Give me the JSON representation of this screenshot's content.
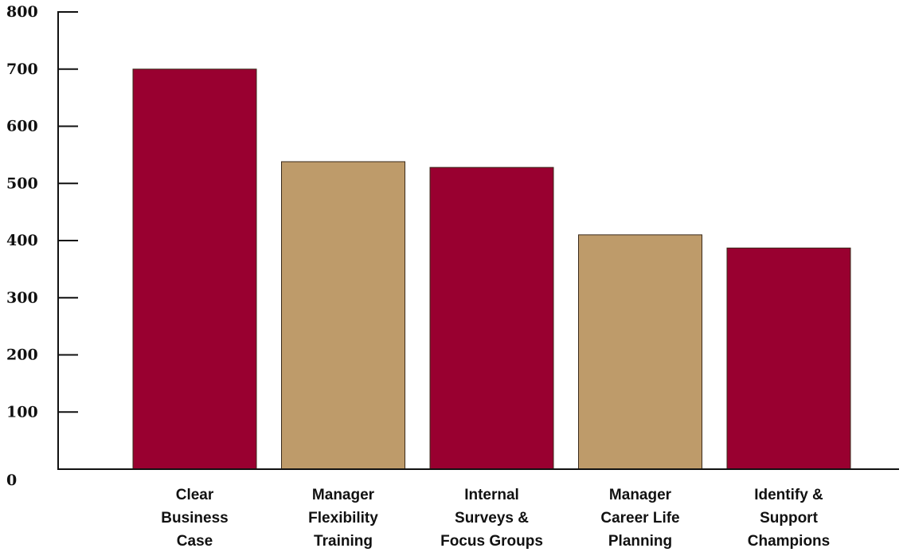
{
  "chart_data": {
    "type": "bar",
    "categories": [
      [
        "Clear",
        "Business",
        "Case"
      ],
      [
        "Manager",
        "Flexibility",
        "Training"
      ],
      [
        "Internal",
        "Surveys &",
        "Focus Groups"
      ],
      [
        "Manager",
        "Career Life",
        "Planning"
      ],
      [
        "Identify &",
        "Support",
        "Champions"
      ]
    ],
    "values": [
      700,
      538,
      528,
      410,
      387
    ],
    "bar_colors": [
      "#990030",
      "#BE9B6A",
      "#990030",
      "#BE9B6A",
      "#990030"
    ],
    "ylim": [
      0,
      800
    ],
    "yticks": [
      "0",
      "100",
      "200",
      "300",
      "400",
      "500",
      "600",
      "700",
      "800"
    ],
    "title": "",
    "xlabel": "",
    "ylabel": "",
    "legend": "none",
    "grid": false
  }
}
